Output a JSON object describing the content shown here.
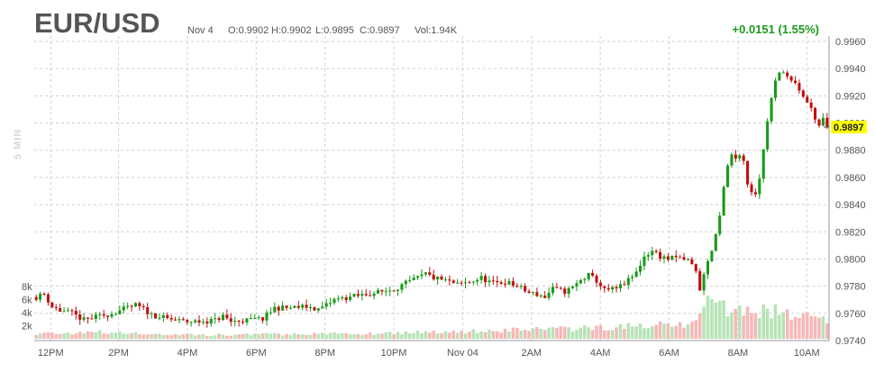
{
  "header": {
    "symbol": "EUR/USD",
    "date": "Nov 4",
    "open": "O:0.9902",
    "high": "H:0.9902",
    "low": "L:0.9895",
    "close": "C:0.9897",
    "volume": "Vol:1.94K",
    "change": "+0.0151 (1.55%)",
    "period_label": "5 MIN"
  },
  "colors": {
    "up": "#1a9a1a",
    "down": "#c01010",
    "volume_up": "#b7e3b7",
    "volume_down": "#f6b8b8",
    "last_price_bg": "#ffff00",
    "grid": "#d0d0d0"
  },
  "chart_data": {
    "type": "line",
    "subtype": "candlestick with volume",
    "title": "EUR/USD",
    "x_tick_labels": [
      "12PM",
      "2PM",
      "4PM",
      "6PM",
      "8PM",
      "10PM",
      "Nov 04",
      "2AM",
      "4AM",
      "6AM",
      "8AM",
      "10AM"
    ],
    "y_tick_labels": [
      "0.9960",
      "0.9940",
      "0.9920",
      "0.9900",
      "0.9880",
      "0.9860",
      "0.9840",
      "0.9820",
      "0.9800",
      "0.9780",
      "0.9760",
      "0.9740"
    ],
    "ylim": [
      0.974,
      0.996
    ],
    "volume_tick_labels": [
      "8k",
      "6k",
      "4k",
      "2k"
    ],
    "volume_ylim": [
      0,
      8000
    ],
    "last_price": "0.9897",
    "grid": true,
    "price_path": [
      [
        0,
        0.9772
      ],
      [
        2,
        0.9774
      ],
      [
        4,
        0.9765
      ],
      [
        6,
        0.9762
      ],
      [
        9,
        0.976
      ],
      [
        12,
        0.9755
      ],
      [
        16,
        0.9758
      ],
      [
        19,
        0.976
      ],
      [
        22,
        0.9763
      ],
      [
        25,
        0.9766
      ],
      [
        27,
        0.9763
      ],
      [
        29,
        0.9759
      ],
      [
        33,
        0.9756
      ],
      [
        37,
        0.9754
      ],
      [
        41,
        0.9754
      ],
      [
        45,
        0.9755
      ],
      [
        47,
        0.9758
      ],
      [
        49,
        0.9754
      ],
      [
        53,
        0.9755
      ],
      [
        57,
        0.9756
      ],
      [
        60,
        0.9764
      ],
      [
        64,
        0.9764
      ],
      [
        68,
        0.9765
      ],
      [
        71,
        0.9763
      ],
      [
        73,
        0.9766
      ],
      [
        75,
        0.977
      ],
      [
        79,
        0.9772
      ],
      [
        83,
        0.9774
      ],
      [
        87,
        0.9776
      ],
      [
        90,
        0.9778
      ],
      [
        93,
        0.9782
      ],
      [
        96,
        0.9786
      ],
      [
        98,
        0.9789
      ],
      [
        100,
        0.9786
      ],
      [
        103,
        0.9784
      ],
      [
        106,
        0.9781
      ],
      [
        109,
        0.9783
      ],
      [
        112,
        0.9786
      ],
      [
        115,
        0.9782
      ],
      [
        118,
        0.9783
      ],
      [
        121,
        0.978
      ],
      [
        124,
        0.9775
      ],
      [
        126,
        0.9774
      ],
      [
        128,
        0.9772
      ],
      [
        130,
        0.9778
      ],
      [
        133,
        0.9776
      ],
      [
        135,
        0.9779
      ],
      [
        137,
        0.9784
      ],
      [
        139,
        0.9788
      ],
      [
        141,
        0.9784
      ],
      [
        143,
        0.9777
      ],
      [
        146,
        0.9778
      ],
      [
        149,
        0.9784
      ],
      [
        151,
        0.979
      ],
      [
        153,
        0.9802
      ],
      [
        155,
        0.9806
      ],
      [
        157,
        0.9802
      ],
      [
        159,
        0.98
      ],
      [
        161,
        0.9801
      ],
      [
        164,
        0.9799
      ],
      [
        166,
        0.9792
      ],
      [
        167,
        0.9776
      ],
      [
        168,
        0.979
      ],
      [
        170,
        0.9806
      ],
      [
        172,
        0.983
      ],
      [
        173,
        0.9852
      ],
      [
        174,
        0.9868
      ],
      [
        175,
        0.9876
      ],
      [
        176,
        0.9874
      ],
      [
        177,
        0.9878
      ],
      [
        178,
        0.9872
      ],
      [
        179,
        0.9856
      ],
      [
        180,
        0.985
      ],
      [
        181,
        0.9849
      ],
      [
        182,
        0.986
      ],
      [
        183,
        0.988
      ],
      [
        184,
        0.9902
      ],
      [
        185,
        0.9918
      ],
      [
        186,
        0.993
      ],
      [
        187,
        0.9936
      ],
      [
        188,
        0.9939
      ],
      [
        189,
        0.9934
      ],
      [
        190,
        0.993
      ],
      [
        191,
        0.9928
      ],
      [
        192,
        0.9923
      ],
      [
        193,
        0.992
      ],
      [
        194,
        0.9915
      ],
      [
        195,
        0.991
      ],
      [
        196,
        0.9904
      ],
      [
        197,
        0.9898
      ],
      [
        198,
        0.9902
      ],
      [
        199,
        0.9897
      ]
    ],
    "volume_path": [
      [
        0,
        800
      ],
      [
        8,
        900
      ],
      [
        16,
        1000
      ],
      [
        24,
        800
      ],
      [
        32,
        700
      ],
      [
        40,
        600
      ],
      [
        48,
        600
      ],
      [
        56,
        700
      ],
      [
        64,
        700
      ],
      [
        72,
        800
      ],
      [
        80,
        700
      ],
      [
        88,
        900
      ],
      [
        96,
        1000
      ],
      [
        104,
        1100
      ],
      [
        112,
        1200
      ],
      [
        120,
        1400
      ],
      [
        128,
        1600
      ],
      [
        136,
        1500
      ],
      [
        144,
        1800
      ],
      [
        152,
        2000
      ],
      [
        160,
        2200
      ],
      [
        166,
        2400
      ],
      [
        168,
        5600
      ],
      [
        172,
        5000
      ],
      [
        176,
        4500
      ],
      [
        180,
        4300
      ],
      [
        184,
        4400
      ],
      [
        188,
        4100
      ],
      [
        192,
        3600
      ],
      [
        196,
        3100
      ],
      [
        199,
        2600
      ]
    ]
  }
}
